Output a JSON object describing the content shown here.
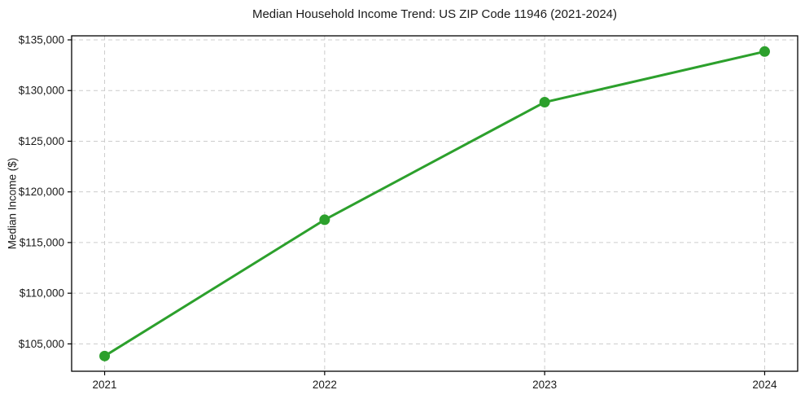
{
  "page": {
    "background": "#ffffff"
  },
  "colors": {
    "line": "#2ca02c",
    "grid": "#cccccc",
    "axis": "#000000",
    "text": "#1a1a1a"
  },
  "chart_data": {
    "type": "line",
    "title": "Median Household Income Trend: US ZIP Code 11946 (2021-2024)",
    "xlabel": "",
    "ylabel": "Median Income ($)",
    "x": [
      2021,
      2022,
      2023,
      2024
    ],
    "x_tick_labels": [
      "2021",
      "2022",
      "2023",
      "2024"
    ],
    "values": [
      103800,
      117250,
      128850,
      133850
    ],
    "yticks": [
      105000,
      110000,
      115000,
      120000,
      125000,
      130000,
      135000
    ],
    "y_tick_labels": [
      "$105,000",
      "$110,000",
      "$115,000",
      "$120,000",
      "$125,000",
      "$130,000",
      "$135,000"
    ],
    "xlim": [
      2020.85,
      2024.15
    ],
    "ylim": [
      102300,
      135400
    ],
    "grid": true,
    "grid_style": "dashed",
    "legend_position": "none",
    "marker": "circle"
  }
}
